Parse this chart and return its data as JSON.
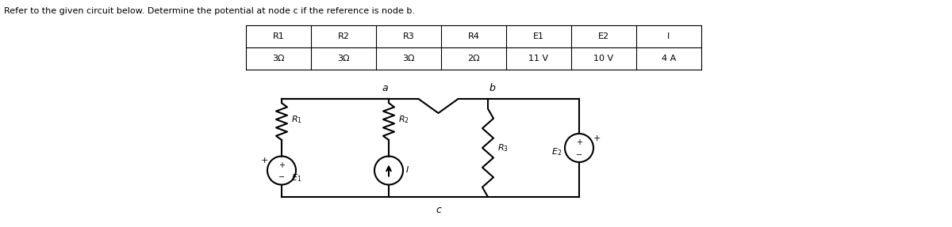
{
  "title_text": "Refer to the given circuit below. Determine the potential at node c if the reference is node b.",
  "table_headers": [
    "R1",
    "R2",
    "R3",
    "R4",
    "E1",
    "E2",
    "I"
  ],
  "table_values": [
    "3Ω",
    "3Ω",
    "3Ω",
    "2Ω",
    "11 V",
    "10 V",
    "4 A"
  ],
  "bg_color": "#ffffff",
  "text_color": "#000000",
  "line_color": "#000000",
  "node_labels": [
    "a",
    "b",
    "c"
  ],
  "component_labels": [
    "R1",
    "R2",
    "R3",
    "E1",
    "E2",
    "I"
  ]
}
